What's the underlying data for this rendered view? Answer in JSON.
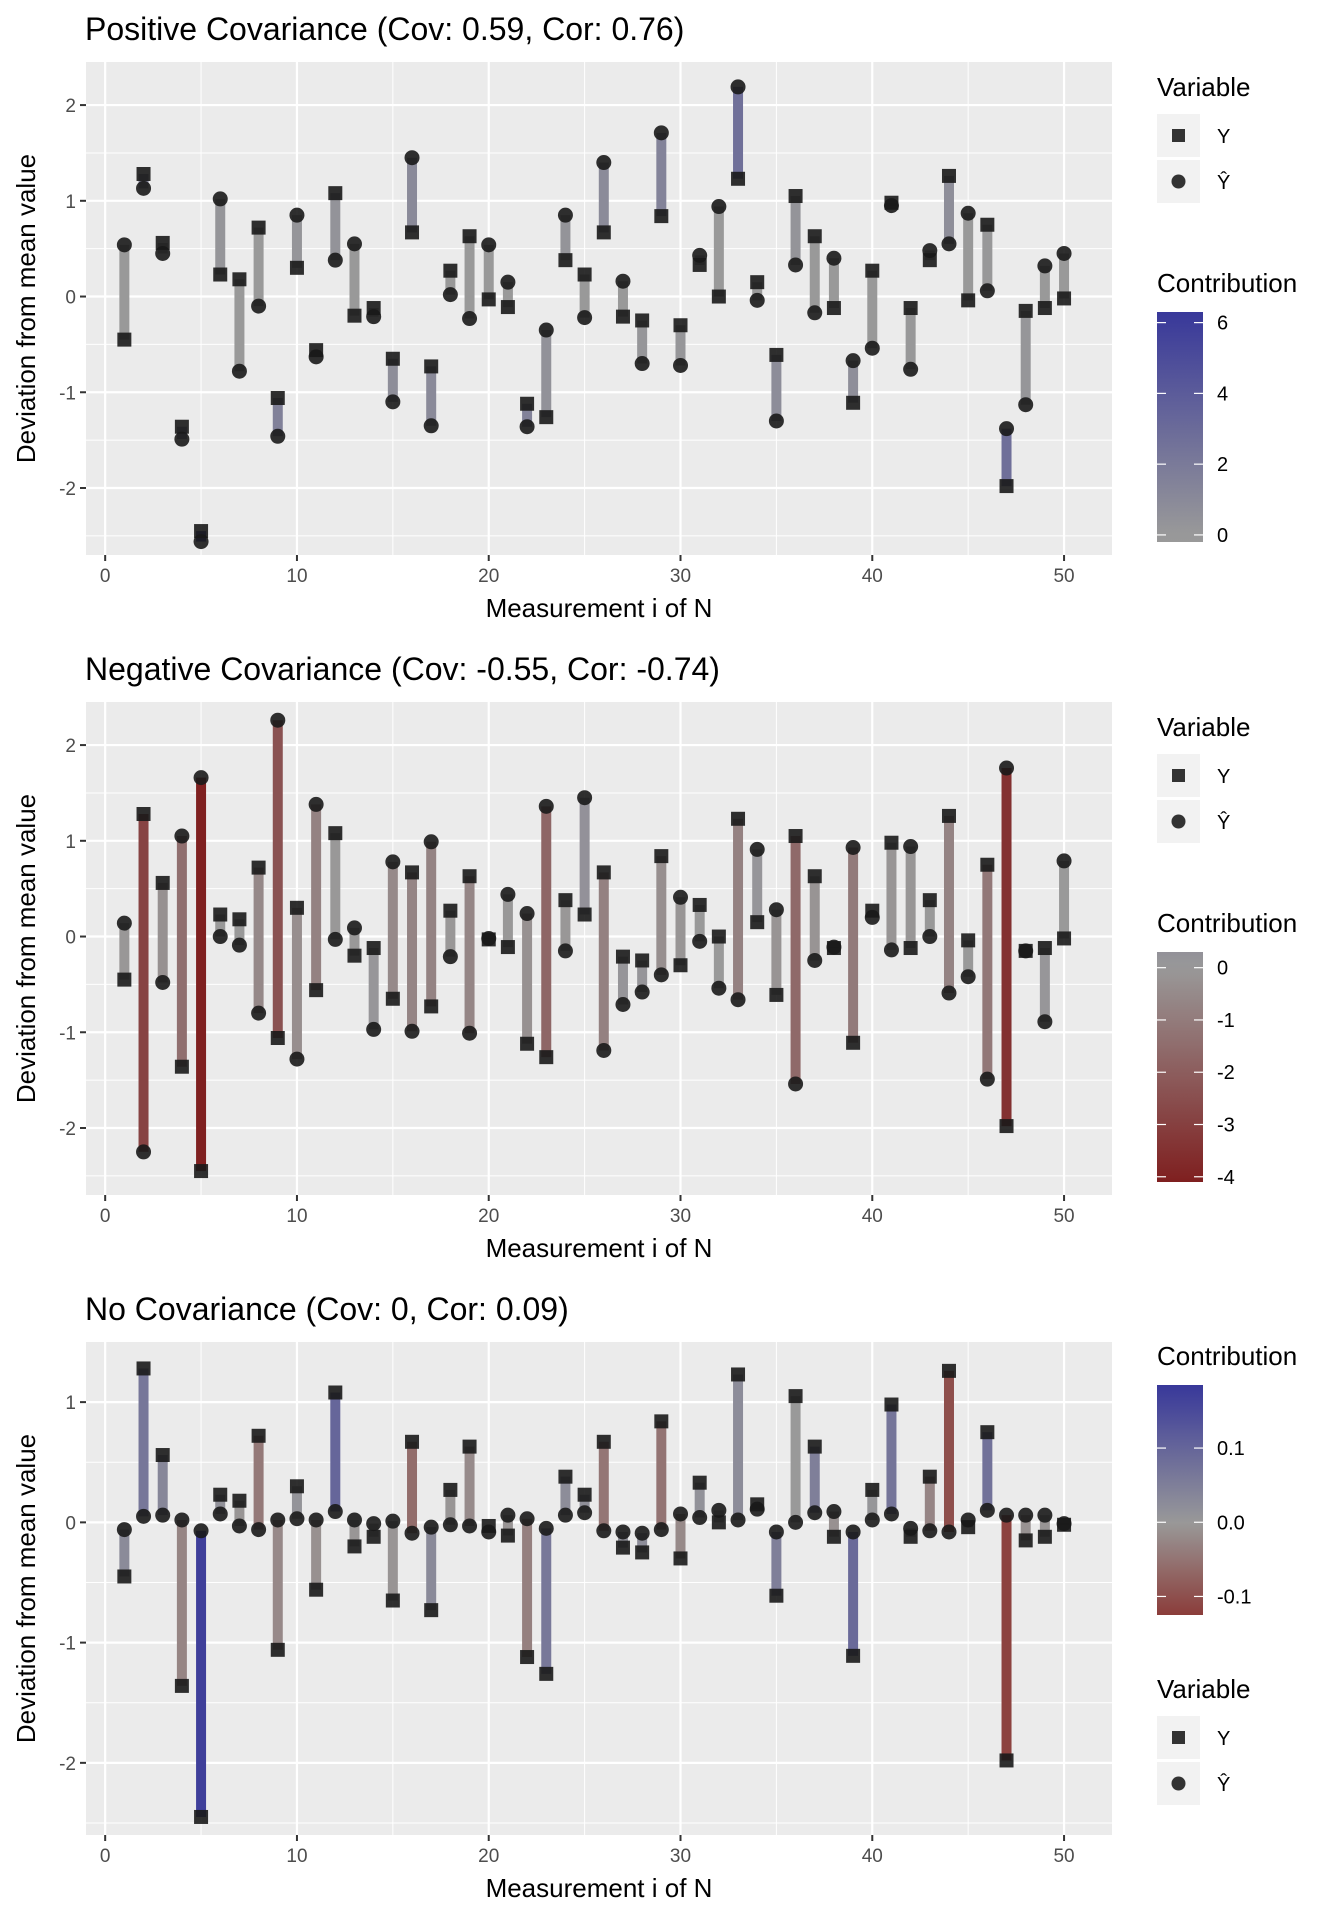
{
  "chart_data": [
    {
      "type": "scatter",
      "subtype": "segment-dot-plot",
      "title": "Positive Covariance (Cov: 0.59, Cor: 0.76)",
      "xlabel": "Measurement i of N",
      "ylabel": "Deviation from mean value",
      "xlim": [
        -1,
        52.5
      ],
      "ylim": [
        -2.7,
        2.45
      ],
      "xticks": [
        0,
        10,
        20,
        30,
        40,
        50
      ],
      "yticks": [
        -2,
        -1,
        0,
        1,
        2
      ],
      "grid": true,
      "legend_position": "right",
      "legend_order": [
        "variable",
        "contribution"
      ],
      "variable_legend": {
        "title": "Variable",
        "items": [
          {
            "label": "Y",
            "shape": "square"
          },
          {
            "label": "Ŷ",
            "shape": "circle"
          }
        ]
      },
      "contribution_legend": {
        "title": "Contribution",
        "ticks": [
          "0",
          "2",
          "4",
          "6"
        ],
        "tick_values": [
          0,
          2,
          4,
          6
        ],
        "range": [
          -0.2,
          6.3
        ],
        "low_color": "#999999",
        "mid_color": "#999999",
        "high_color": "#38389a"
      },
      "x": [
        1,
        2,
        3,
        4,
        5,
        6,
        7,
        8,
        9,
        10,
        11,
        12,
        13,
        14,
        15,
        16,
        17,
        18,
        19,
        20,
        21,
        22,
        23,
        24,
        25,
        26,
        27,
        28,
        29,
        30,
        31,
        32,
        33,
        34,
        35,
        36,
        37,
        38,
        39,
        40,
        41,
        42,
        43,
        44,
        45,
        46,
        47,
        48,
        49,
        50
      ],
      "series": [
        {
          "name": "Y",
          "values": [
            -0.45,
            1.28,
            0.56,
            -1.36,
            -2.45,
            0.23,
            0.18,
            0.72,
            -1.06,
            0.3,
            -0.56,
            1.08,
            -0.2,
            -0.12,
            -0.65,
            0.67,
            -0.73,
            0.27,
            0.63,
            -0.03,
            -0.11,
            -1.12,
            -1.26,
            0.38,
            0.23,
            0.67,
            -0.21,
            -0.25,
            0.84,
            -0.3,
            0.33,
            0.0,
            1.23,
            0.15,
            -0.61,
            1.05,
            0.63,
            -0.12,
            -1.11,
            0.27,
            0.98,
            -0.12,
            0.38,
            1.26,
            -0.04,
            0.75,
            -1.98,
            -0.15,
            -0.12,
            -0.02
          ]
        },
        {
          "name": "Ŷ",
          "values": [
            0.54,
            1.13,
            0.45,
            -1.49,
            -2.56,
            1.02,
            -0.78,
            -0.1,
            -1.46,
            0.85,
            -0.63,
            0.38,
            0.55,
            -0.21,
            -1.1,
            1.45,
            -1.35,
            0.02,
            -0.23,
            0.54,
            0.15,
            -1.36,
            -0.35,
            0.85,
            -0.22,
            1.4,
            0.16,
            -0.7,
            1.71,
            -0.72,
            0.43,
            0.94,
            2.19,
            -0.04,
            -1.3,
            0.33,
            -0.17,
            0.4,
            -0.67,
            -0.54,
            0.95,
            -0.76,
            0.48,
            0.55,
            0.87,
            0.06,
            -1.38,
            -1.13,
            0.32,
            0.45
          ]
        }
      ]
    },
    {
      "type": "scatter",
      "subtype": "segment-dot-plot",
      "title": "Negative Covariance (Cov: -0.55, Cor: -0.74)",
      "xlabel": "Measurement i of N",
      "ylabel": "Deviation from mean value",
      "xlim": [
        -1,
        52.5
      ],
      "ylim": [
        -2.7,
        2.45
      ],
      "xticks": [
        0,
        10,
        20,
        30,
        40,
        50
      ],
      "yticks": [
        -2,
        -1,
        0,
        1,
        2
      ],
      "grid": true,
      "legend_position": "right",
      "legend_order": [
        "variable",
        "contribution"
      ],
      "variable_legend": {
        "title": "Variable",
        "items": [
          {
            "label": "Y",
            "shape": "square"
          },
          {
            "label": "Ŷ",
            "shape": "circle"
          }
        ]
      },
      "contribution_legend": {
        "title": "Contribution",
        "ticks": [
          "0",
          "-1",
          "-2",
          "-3",
          "-4"
        ],
        "tick_values": [
          0,
          -1,
          -2,
          -3,
          -4
        ],
        "range": [
          -4.1,
          0.3
        ],
        "low_color": "#7f1f1f",
        "mid_color": "#999999",
        "high_color": "#939199"
      },
      "x": [
        1,
        2,
        3,
        4,
        5,
        6,
        7,
        8,
        9,
        10,
        11,
        12,
        13,
        14,
        15,
        16,
        17,
        18,
        19,
        20,
        21,
        22,
        23,
        24,
        25,
        26,
        27,
        28,
        29,
        30,
        31,
        32,
        33,
        34,
        35,
        36,
        37,
        38,
        39,
        40,
        41,
        42,
        43,
        44,
        45,
        46,
        47,
        48,
        49,
        50
      ],
      "series": [
        {
          "name": "Y",
          "values": [
            -0.45,
            1.28,
            0.56,
            -1.36,
            -2.45,
            0.23,
            0.18,
            0.72,
            -1.06,
            0.3,
            -0.56,
            1.08,
            -0.2,
            -0.12,
            -0.65,
            0.67,
            -0.73,
            0.27,
            0.63,
            -0.03,
            -0.11,
            -1.12,
            -1.26,
            0.38,
            0.23,
            0.67,
            -0.21,
            -0.25,
            0.84,
            -0.3,
            0.33,
            0.0,
            1.23,
            0.15,
            -0.61,
            1.05,
            0.63,
            -0.12,
            -1.11,
            0.27,
            0.98,
            -0.12,
            0.38,
            1.26,
            -0.04,
            0.75,
            -1.98,
            -0.15,
            -0.12,
            -0.02
          ]
        },
        {
          "name": "Ŷ",
          "values": [
            0.14,
            -2.25,
            -0.48,
            1.05,
            1.66,
            0.0,
            -0.09,
            -0.8,
            2.26,
            -1.28,
            1.38,
            -0.03,
            0.09,
            -0.97,
            0.78,
            -0.99,
            0.99,
            -0.21,
            -1.01,
            -0.02,
            0.44,
            0.24,
            1.36,
            -0.15,
            1.45,
            -1.19,
            -0.71,
            -0.58,
            -0.4,
            0.41,
            -0.05,
            -0.54,
            -0.66,
            0.91,
            0.28,
            -1.54,
            -0.25,
            -0.11,
            0.93,
            0.2,
            -0.14,
            0.94,
            0.0,
            -0.59,
            -0.42,
            -1.49,
            1.76,
            -0.15,
            -0.89,
            0.79
          ]
        }
      ]
    },
    {
      "type": "scatter",
      "subtype": "segment-dot-plot",
      "title": "No Covariance (Cov: 0, Cor: 0.09)",
      "xlabel": "Measurement i of N",
      "ylabel": "Deviation from mean value",
      "xlim": [
        -1,
        52.5
      ],
      "ylim": [
        -2.6,
        1.5
      ],
      "xticks": [
        0,
        10,
        20,
        30,
        40,
        50
      ],
      "yticks": [
        -2,
        -1,
        0,
        1
      ],
      "grid": true,
      "legend_position": "right",
      "legend_order": [
        "contribution",
        "variable"
      ],
      "variable_legend": {
        "title": "Variable",
        "items": [
          {
            "label": "Y",
            "shape": "square"
          },
          {
            "label": "Ŷ",
            "shape": "circle"
          }
        ]
      },
      "contribution_legend": {
        "title": "Contribution",
        "ticks": [
          "0.1",
          "0.0",
          "-0.1"
        ],
        "tick_values": [
          0.1,
          0.0,
          -0.1
        ],
        "range": [
          -0.125,
          0.185
        ],
        "low_color": "#8b3d3a",
        "mid_color": "#999999",
        "high_color": "#38389a"
      },
      "x": [
        1,
        2,
        3,
        4,
        5,
        6,
        7,
        8,
        9,
        10,
        11,
        12,
        13,
        14,
        15,
        16,
        17,
        18,
        19,
        20,
        21,
        22,
        23,
        24,
        25,
        26,
        27,
        28,
        29,
        30,
        31,
        32,
        33,
        34,
        35,
        36,
        37,
        38,
        39,
        40,
        41,
        42,
        43,
        44,
        45,
        46,
        47,
        48,
        49,
        50
      ],
      "series": [
        {
          "name": "Y",
          "values": [
            -0.45,
            1.28,
            0.56,
            -1.36,
            -2.45,
            0.23,
            0.18,
            0.72,
            -1.06,
            0.3,
            -0.56,
            1.08,
            -0.2,
            -0.12,
            -0.65,
            0.67,
            -0.73,
            0.27,
            0.63,
            -0.03,
            -0.11,
            -1.12,
            -1.26,
            0.38,
            0.23,
            0.67,
            -0.21,
            -0.25,
            0.84,
            -0.3,
            0.33,
            0.0,
            1.23,
            0.15,
            -0.61,
            1.05,
            0.63,
            -0.12,
            -1.11,
            0.27,
            0.98,
            -0.12,
            0.38,
            1.26,
            -0.04,
            0.75,
            -1.98,
            -0.15,
            -0.12,
            -0.02
          ]
        },
        {
          "name": "Ŷ",
          "values": [
            -0.06,
            0.05,
            0.06,
            0.02,
            -0.07,
            0.07,
            -0.03,
            -0.06,
            0.02,
            0.03,
            0.02,
            0.09,
            0.02,
            -0.01,
            0.01,
            -0.09,
            -0.04,
            -0.02,
            -0.03,
            -0.08,
            0.06,
            0.03,
            -0.05,
            0.06,
            0.08,
            -0.07,
            -0.08,
            -0.09,
            -0.06,
            0.07,
            0.04,
            0.1,
            0.02,
            0.11,
            -0.08,
            0.0,
            0.08,
            0.09,
            -0.08,
            0.02,
            0.07,
            -0.05,
            -0.07,
            -0.08,
            0.02,
            0.1,
            0.06,
            0.06,
            0.06,
            -0.01
          ]
        }
      ]
    }
  ]
}
